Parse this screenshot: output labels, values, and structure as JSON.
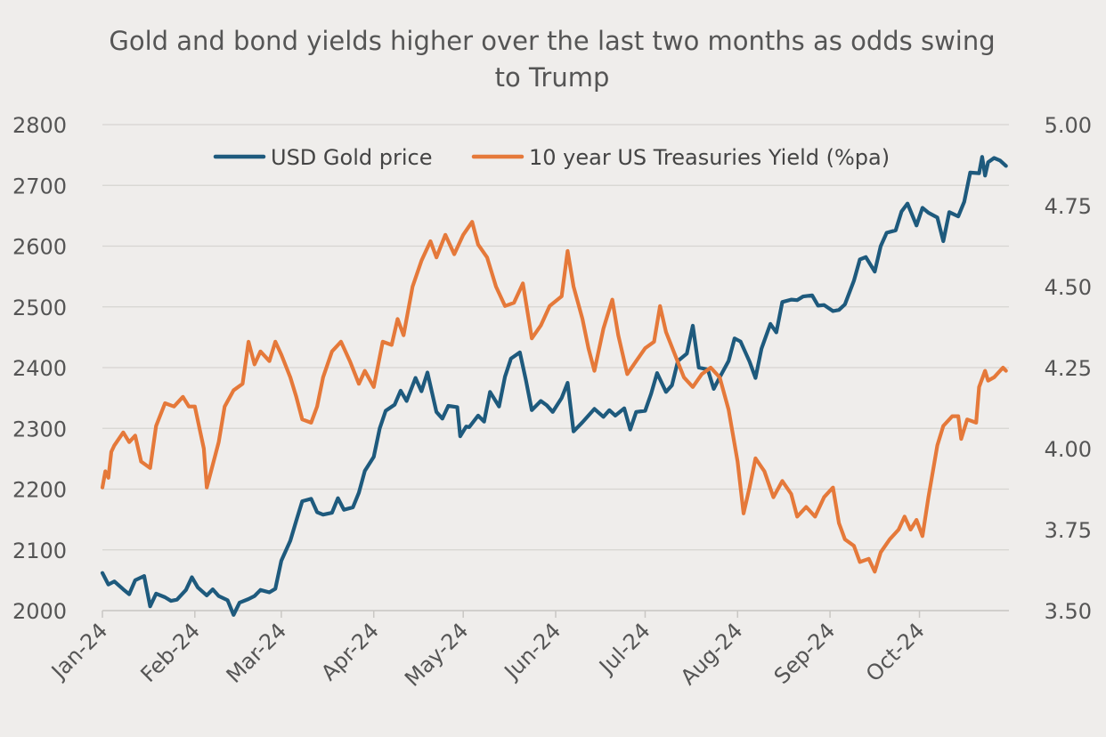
{
  "chart_data": {
    "type": "line",
    "title": "Gold and bond yields higher over the last two months as odds swing to Trump",
    "x_tick_labels": [
      "Jan-24",
      "Feb-24",
      "Mar-24",
      "Apr-24",
      "May-24",
      "Jun-24",
      "Jul-24",
      "Aug-24",
      "Sep-24",
      "Oct-24"
    ],
    "x_range": [
      "2024-01-01",
      "2024-10-31"
    ],
    "y_left": {
      "ylim": [
        2000,
        2800
      ],
      "ticks": [
        "2000",
        "2100",
        "2200",
        "2300",
        "2400",
        "2500",
        "2600",
        "2700",
        "2800"
      ]
    },
    "y_right": {
      "ylim": [
        3.5,
        5.0
      ],
      "ticks": [
        "3.50",
        "3.75",
        "4.00",
        "4.25",
        "4.50",
        "4.75",
        "5.00"
      ]
    },
    "grid": true,
    "legend_position": "top",
    "series": [
      {
        "name": "USD Gold price",
        "axis": "left",
        "color": "#1e5a7d",
        "points": [
          [
            "2024-01-01",
            2062
          ],
          [
            "2024-01-03",
            2043
          ],
          [
            "2024-01-05",
            2048
          ],
          [
            "2024-01-08",
            2035
          ],
          [
            "2024-01-10",
            2027
          ],
          [
            "2024-01-12",
            2050
          ],
          [
            "2024-01-15",
            2057
          ],
          [
            "2024-01-17",
            2007
          ],
          [
            "2024-01-19",
            2028
          ],
          [
            "2024-01-22",
            2022
          ],
          [
            "2024-01-24",
            2016
          ],
          [
            "2024-01-26",
            2018
          ],
          [
            "2024-01-29",
            2034
          ],
          [
            "2024-01-31",
            2055
          ],
          [
            "2024-02-02",
            2038
          ],
          [
            "2024-02-05",
            2025
          ],
          [
            "2024-02-07",
            2035
          ],
          [
            "2024-02-09",
            2024
          ],
          [
            "2024-02-12",
            2017
          ],
          [
            "2024-02-14",
            1993
          ],
          [
            "2024-02-16",
            2013
          ],
          [
            "2024-02-19",
            2019
          ],
          [
            "2024-02-21",
            2024
          ],
          [
            "2024-02-23",
            2034
          ],
          [
            "2024-02-26",
            2030
          ],
          [
            "2024-02-28",
            2036
          ],
          [
            "2024-03-01",
            2082
          ],
          [
            "2024-03-04",
            2115
          ],
          [
            "2024-03-06",
            2148
          ],
          [
            "2024-03-08",
            2180
          ],
          [
            "2024-03-11",
            2184
          ],
          [
            "2024-03-13",
            2162
          ],
          [
            "2024-03-15",
            2158
          ],
          [
            "2024-03-18",
            2161
          ],
          [
            "2024-03-20",
            2185
          ],
          [
            "2024-03-22",
            2166
          ],
          [
            "2024-03-25",
            2170
          ],
          [
            "2024-03-27",
            2194
          ],
          [
            "2024-03-29",
            2230
          ],
          [
            "2024-04-01",
            2253
          ],
          [
            "2024-04-03",
            2300
          ],
          [
            "2024-04-05",
            2329
          ],
          [
            "2024-04-08",
            2339
          ],
          [
            "2024-04-10",
            2362
          ],
          [
            "2024-04-12",
            2345
          ],
          [
            "2024-04-15",
            2383
          ],
          [
            "2024-04-17",
            2361
          ],
          [
            "2024-04-19",
            2392
          ],
          [
            "2024-04-22",
            2327
          ],
          [
            "2024-04-24",
            2316
          ],
          [
            "2024-04-26",
            2337
          ],
          [
            "2024-04-29",
            2335
          ],
          [
            "2024-04-30",
            2287
          ],
          [
            "2024-05-02",
            2303
          ],
          [
            "2024-05-03",
            2302
          ],
          [
            "2024-05-06",
            2321
          ],
          [
            "2024-05-08",
            2311
          ],
          [
            "2024-05-10",
            2360
          ],
          [
            "2024-05-13",
            2336
          ],
          [
            "2024-05-15",
            2385
          ],
          [
            "2024-05-17",
            2415
          ],
          [
            "2024-05-20",
            2425
          ],
          [
            "2024-05-22",
            2380
          ],
          [
            "2024-05-24",
            2330
          ],
          [
            "2024-05-27",
            2345
          ],
          [
            "2024-05-29",
            2338
          ],
          [
            "2024-05-31",
            2327
          ],
          [
            "2024-06-03",
            2350
          ],
          [
            "2024-06-05",
            2375
          ],
          [
            "2024-06-07",
            2295
          ],
          [
            "2024-06-10",
            2310
          ],
          [
            "2024-06-12",
            2321
          ],
          [
            "2024-06-14",
            2332
          ],
          [
            "2024-06-17",
            2319
          ],
          [
            "2024-06-19",
            2330
          ],
          [
            "2024-06-21",
            2321
          ],
          [
            "2024-06-24",
            2333
          ],
          [
            "2024-06-26",
            2298
          ],
          [
            "2024-06-28",
            2327
          ],
          [
            "2024-07-01",
            2329
          ],
          [
            "2024-07-03",
            2357
          ],
          [
            "2024-07-05",
            2391
          ],
          [
            "2024-07-08",
            2360
          ],
          [
            "2024-07-10",
            2371
          ],
          [
            "2024-07-12",
            2411
          ],
          [
            "2024-07-15",
            2423
          ],
          [
            "2024-07-17",
            2469
          ],
          [
            "2024-07-19",
            2400
          ],
          [
            "2024-07-22",
            2397
          ],
          [
            "2024-07-24",
            2365
          ],
          [
            "2024-07-26",
            2384
          ],
          [
            "2024-07-29",
            2411
          ],
          [
            "2024-07-31",
            2448
          ],
          [
            "2024-08-02",
            2443
          ],
          [
            "2024-08-05",
            2410
          ],
          [
            "2024-08-07",
            2383
          ],
          [
            "2024-08-09",
            2431
          ],
          [
            "2024-08-12",
            2472
          ],
          [
            "2024-08-14",
            2458
          ],
          [
            "2024-08-16",
            2508
          ],
          [
            "2024-08-19",
            2512
          ],
          [
            "2024-08-21",
            2511
          ],
          [
            "2024-08-23",
            2517
          ],
          [
            "2024-08-26",
            2519
          ],
          [
            "2024-08-28",
            2502
          ],
          [
            "2024-08-30",
            2503
          ],
          [
            "2024-09-02",
            2493
          ],
          [
            "2024-09-04",
            2495
          ],
          [
            "2024-09-06",
            2504
          ],
          [
            "2024-09-09",
            2543
          ],
          [
            "2024-09-11",
            2578
          ],
          [
            "2024-09-13",
            2582
          ],
          [
            "2024-09-16",
            2558
          ],
          [
            "2024-09-18",
            2600
          ],
          [
            "2024-09-20",
            2622
          ],
          [
            "2024-09-23",
            2626
          ],
          [
            "2024-09-25",
            2657
          ],
          [
            "2024-09-27",
            2670
          ],
          [
            "2024-09-30",
            2634
          ],
          [
            "2024-10-02",
            2663
          ],
          [
            "2024-10-04",
            2655
          ],
          [
            "2024-10-07",
            2647
          ],
          [
            "2024-10-09",
            2608
          ],
          [
            "2024-10-11",
            2656
          ],
          [
            "2024-10-14",
            2649
          ],
          [
            "2024-10-16",
            2673
          ],
          [
            "2024-10-18",
            2721
          ],
          [
            "2024-10-21",
            2720
          ],
          [
            "2024-10-22",
            2747
          ],
          [
            "2024-10-23",
            2716
          ],
          [
            "2024-10-24",
            2738
          ],
          [
            "2024-10-26",
            2745
          ],
          [
            "2024-10-28",
            2741
          ],
          [
            "2024-10-30",
            2732
          ]
        ]
      },
      {
        "name": "10 year US Treasuries Yield (%pa)",
        "axis": "right",
        "color": "#e5793a",
        "points": [
          [
            "2024-01-01",
            3.88
          ],
          [
            "2024-01-02",
            3.93
          ],
          [
            "2024-01-03",
            3.91
          ],
          [
            "2024-01-04",
            3.99
          ],
          [
            "2024-01-05",
            4.01
          ],
          [
            "2024-01-08",
            4.05
          ],
          [
            "2024-01-10",
            4.02
          ],
          [
            "2024-01-12",
            4.04
          ],
          [
            "2024-01-14",
            3.96
          ],
          [
            "2024-01-17",
            3.94
          ],
          [
            "2024-01-19",
            4.07
          ],
          [
            "2024-01-22",
            4.14
          ],
          [
            "2024-01-25",
            4.13
          ],
          [
            "2024-01-28",
            4.16
          ],
          [
            "2024-01-30",
            4.13
          ],
          [
            "2024-02-01",
            4.13
          ],
          [
            "2024-02-04",
            4.0
          ],
          [
            "2024-02-05",
            3.88
          ],
          [
            "2024-02-07",
            3.95
          ],
          [
            "2024-02-09",
            4.02
          ],
          [
            "2024-02-11",
            4.13
          ],
          [
            "2024-02-14",
            4.18
          ],
          [
            "2024-02-17",
            4.2
          ],
          [
            "2024-02-19",
            4.33
          ],
          [
            "2024-02-21",
            4.26
          ],
          [
            "2024-02-23",
            4.3
          ],
          [
            "2024-02-26",
            4.27
          ],
          [
            "2024-02-28",
            4.33
          ],
          [
            "2024-03-01",
            4.29
          ],
          [
            "2024-03-04",
            4.22
          ],
          [
            "2024-03-06",
            4.16
          ],
          [
            "2024-03-08",
            4.09
          ],
          [
            "2024-03-11",
            4.08
          ],
          [
            "2024-03-13",
            4.13
          ],
          [
            "2024-03-15",
            4.22
          ],
          [
            "2024-03-18",
            4.3
          ],
          [
            "2024-03-21",
            4.33
          ],
          [
            "2024-03-24",
            4.27
          ],
          [
            "2024-03-27",
            4.2
          ],
          [
            "2024-03-29",
            4.24
          ],
          [
            "2024-04-01",
            4.19
          ],
          [
            "2024-04-04",
            4.33
          ],
          [
            "2024-04-07",
            4.32
          ],
          [
            "2024-04-09",
            4.4
          ],
          [
            "2024-04-11",
            4.35
          ],
          [
            "2024-04-14",
            4.5
          ],
          [
            "2024-04-17",
            4.58
          ],
          [
            "2024-04-20",
            4.64
          ],
          [
            "2024-04-22",
            4.59
          ],
          [
            "2024-04-25",
            4.66
          ],
          [
            "2024-04-28",
            4.6
          ],
          [
            "2024-05-01",
            4.66
          ],
          [
            "2024-05-04",
            4.7
          ],
          [
            "2024-05-06",
            4.63
          ],
          [
            "2024-05-09",
            4.59
          ],
          [
            "2024-05-12",
            4.5
          ],
          [
            "2024-05-15",
            4.44
          ],
          [
            "2024-05-18",
            4.45
          ],
          [
            "2024-05-21",
            4.51
          ],
          [
            "2024-05-24",
            4.34
          ],
          [
            "2024-05-27",
            4.38
          ],
          [
            "2024-05-30",
            4.44
          ],
          [
            "2024-06-03",
            4.47
          ],
          [
            "2024-06-05",
            4.61
          ],
          [
            "2024-06-07",
            4.5
          ],
          [
            "2024-06-10",
            4.4
          ],
          [
            "2024-06-12",
            4.31
          ],
          [
            "2024-06-14",
            4.24
          ],
          [
            "2024-06-17",
            4.37
          ],
          [
            "2024-06-20",
            4.46
          ],
          [
            "2024-06-22",
            4.35
          ],
          [
            "2024-06-25",
            4.23
          ],
          [
            "2024-06-28",
            4.27
          ],
          [
            "2024-07-01",
            4.31
          ],
          [
            "2024-07-04",
            4.33
          ],
          [
            "2024-07-06",
            4.44
          ],
          [
            "2024-07-08",
            4.36
          ],
          [
            "2024-07-11",
            4.29
          ],
          [
            "2024-07-14",
            4.22
          ],
          [
            "2024-07-17",
            4.19
          ],
          [
            "2024-07-20",
            4.23
          ],
          [
            "2024-07-23",
            4.25
          ],
          [
            "2024-07-26",
            4.22
          ],
          [
            "2024-07-29",
            4.12
          ],
          [
            "2024-08-01",
            3.96
          ],
          [
            "2024-08-03",
            3.8
          ],
          [
            "2024-08-05",
            3.88
          ],
          [
            "2024-08-07",
            3.97
          ],
          [
            "2024-08-10",
            3.93
          ],
          [
            "2024-08-13",
            3.85
          ],
          [
            "2024-08-16",
            3.9
          ],
          [
            "2024-08-19",
            3.86
          ],
          [
            "2024-08-21",
            3.79
          ],
          [
            "2024-08-24",
            3.82
          ],
          [
            "2024-08-27",
            3.79
          ],
          [
            "2024-08-30",
            3.85
          ],
          [
            "2024-09-02",
            3.88
          ],
          [
            "2024-09-04",
            3.77
          ],
          [
            "2024-09-06",
            3.72
          ],
          [
            "2024-09-09",
            3.7
          ],
          [
            "2024-09-11",
            3.65
          ],
          [
            "2024-09-14",
            3.66
          ],
          [
            "2024-09-16",
            3.62
          ],
          [
            "2024-09-18",
            3.68
          ],
          [
            "2024-09-21",
            3.72
          ],
          [
            "2024-09-24",
            3.75
          ],
          [
            "2024-09-26",
            3.79
          ],
          [
            "2024-09-28",
            3.75
          ],
          [
            "2024-09-30",
            3.78
          ],
          [
            "2024-10-02",
            3.73
          ],
          [
            "2024-10-04",
            3.85
          ],
          [
            "2024-10-07",
            4.01
          ],
          [
            "2024-10-09",
            4.07
          ],
          [
            "2024-10-12",
            4.1
          ],
          [
            "2024-10-14",
            4.1
          ],
          [
            "2024-10-15",
            4.03
          ],
          [
            "2024-10-17",
            4.09
          ],
          [
            "2024-10-20",
            4.08
          ],
          [
            "2024-10-21",
            4.19
          ],
          [
            "2024-10-23",
            4.24
          ],
          [
            "2024-10-24",
            4.21
          ],
          [
            "2024-10-26",
            4.22
          ],
          [
            "2024-10-29",
            4.25
          ],
          [
            "2024-10-30",
            4.24
          ]
        ]
      }
    ]
  }
}
